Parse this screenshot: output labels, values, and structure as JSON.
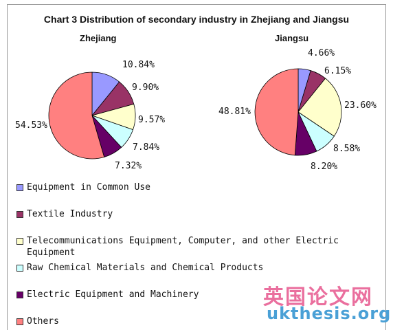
{
  "chart_data": {
    "type": "pie",
    "title": "Chart 3 Distribution of secondary industry in Zhejiang and Jiangsu",
    "categories": [
      "Equipment in Common Use",
      "Textile Industry",
      "Telecommunications Equipment, Computer, and other Electric Equipment",
      "Raw Chemical Materials and Chemical Products",
      "Electric Equipment and Machinery",
      "Others"
    ],
    "colors": [
      "#9999ff",
      "#993366",
      "#ffffcc",
      "#ccffff",
      "#660066",
      "#ff8080"
    ],
    "series": [
      {
        "name": "Zhejiang",
        "values": [
          10.84,
          9.9,
          9.57,
          7.84,
          7.32,
          54.53
        ],
        "labels": [
          "10.84%",
          "9.90%",
          "9.57%",
          "7.84%",
          "7.32%",
          "54.53%"
        ]
      },
      {
        "name": "Jiangsu",
        "values": [
          4.66,
          6.15,
          23.6,
          8.58,
          8.2,
          48.81
        ],
        "labels": [
          "4.66%",
          "6.15%",
          "23.60%",
          "8.58%",
          "8.20%",
          "48.81%"
        ]
      }
    ],
    "legend_position": "bottom"
  },
  "legend": {
    "items": [
      {
        "label": "Equipment in Common Use"
      },
      {
        "label": "Textile Industry"
      },
      {
        "label": "Telecommunications Equipment, Computer, and other Electric Equipment"
      },
      {
        "label": "Raw Chemical Materials and Chemical Products"
      },
      {
        "label": "Electric Equipment and Machinery"
      },
      {
        "label": "Others"
      }
    ]
  },
  "watermark": {
    "chinese": "英国论文网",
    "url": "ukthesis.org"
  }
}
